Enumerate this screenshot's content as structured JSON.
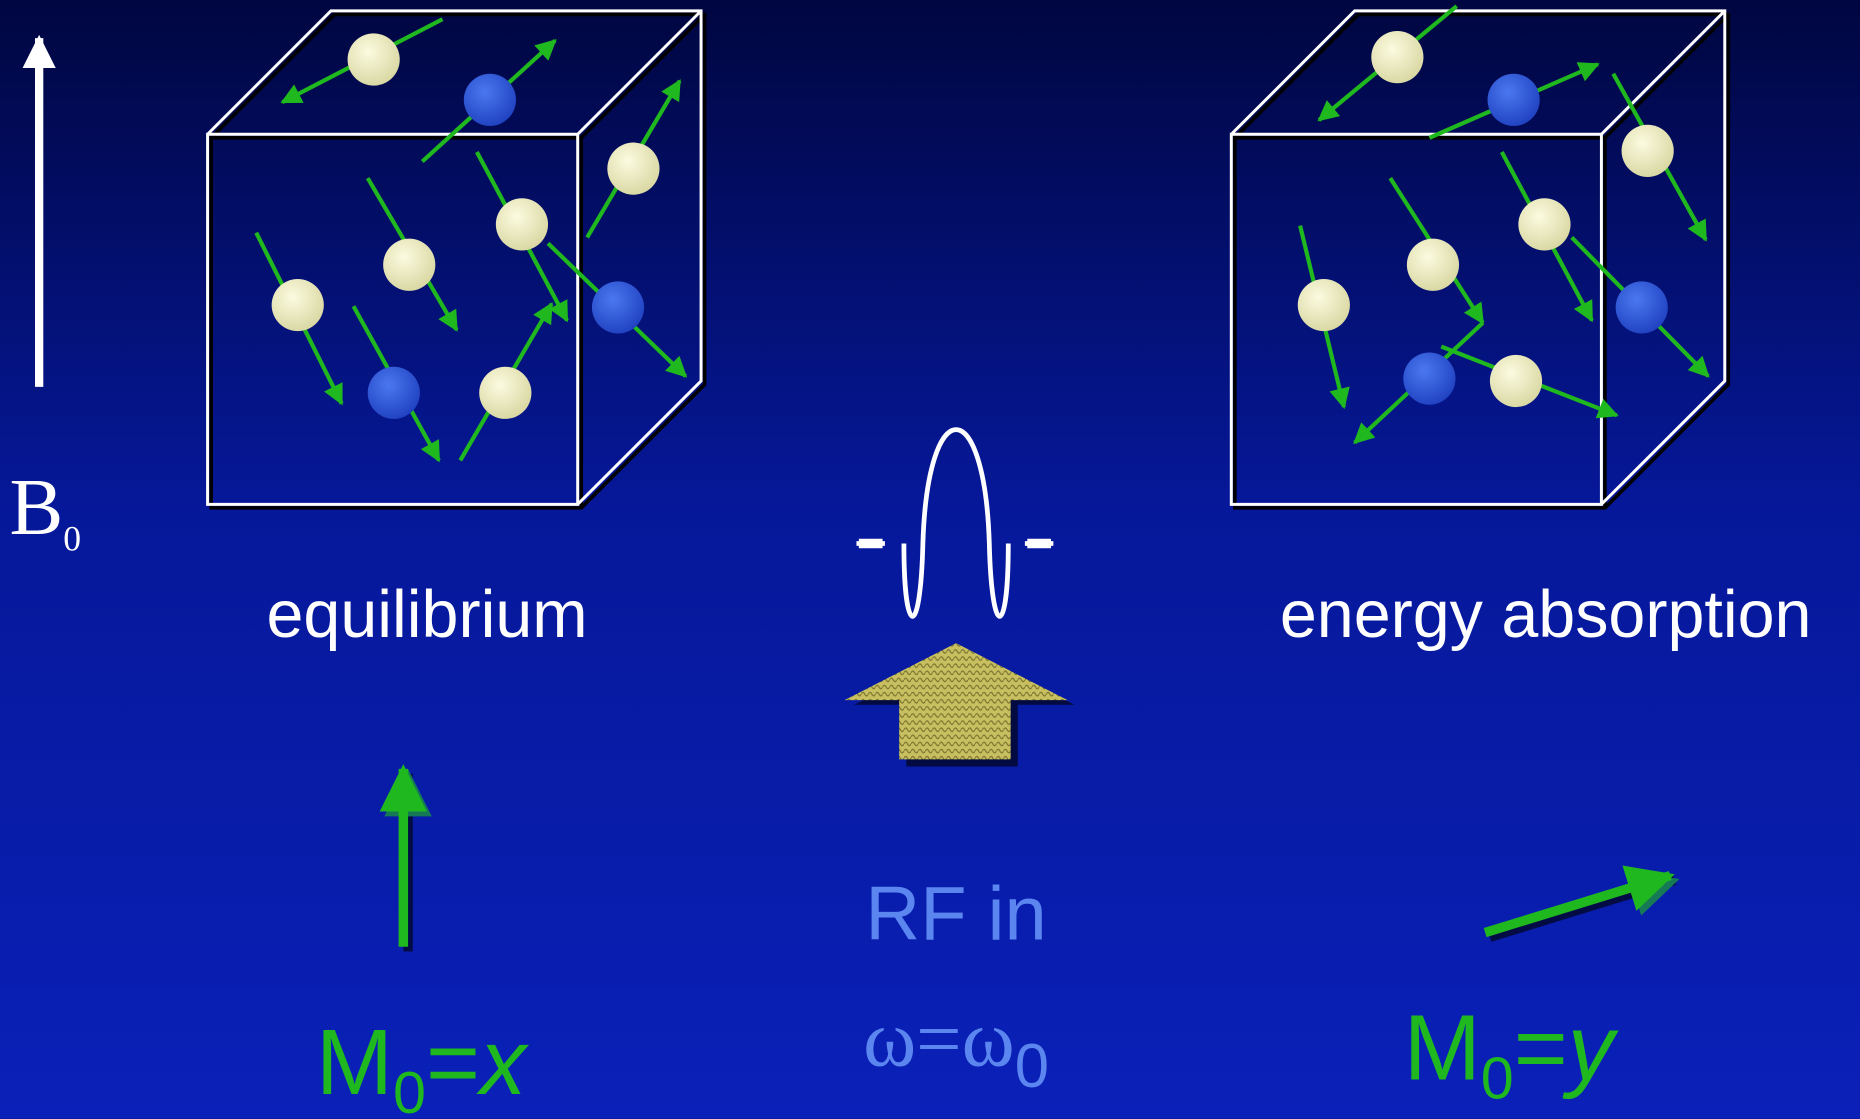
{
  "b_field": {
    "label": "B",
    "subscript": "0"
  },
  "left_panel": {
    "caption": "equilibrium",
    "magnetization": {
      "symbol": "M",
      "subscript": "0",
      "equals": "=",
      "value": "x"
    }
  },
  "right_panel": {
    "caption": "energy absorption",
    "magnetization": {
      "symbol": "M",
      "subscript": "0",
      "equals": "=",
      "value": "y"
    }
  },
  "rf": {
    "line1": "RF in",
    "omega": "ω=ω",
    "omega_subscript": "0"
  }
}
